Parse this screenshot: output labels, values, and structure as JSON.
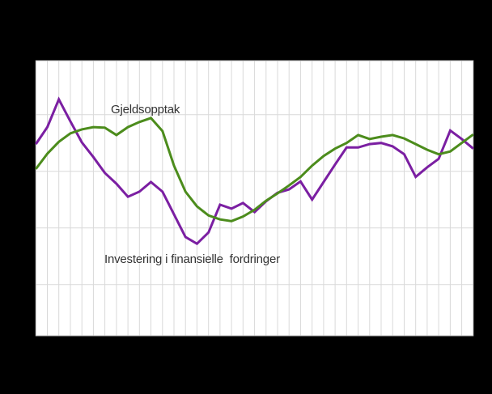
{
  "page": {
    "background_color": "#000000",
    "plot_background_color": "#ffffff"
  },
  "styles": {
    "grid_color": "#d9d9d9",
    "plot_border_color": "#c3c3c3",
    "label_color": "#333333",
    "green_series_color": "#4c8c1c",
    "purple_series_color": "#7b1fa2"
  },
  "chart_data": {
    "type": "line",
    "title": "",
    "xlabel": "",
    "ylabel": "",
    "x_axis_labels_visible": false,
    "y_axis_labels_visible": false,
    "y_unit": "gridline units (no axis labels visible; 1 unit = one horizontal gridline spacing, 0 = lowest visible horizontal gridline)",
    "grid": true,
    "x_gridline_intervals": 38,
    "y_gridlines_at": [
      0,
      1,
      2,
      3
    ],
    "ylim": [
      -0.9,
      3.95
    ],
    "legend_position": "inline-annotations",
    "series": [
      {
        "name": "Gjeldsopptak",
        "color": "#4c8c1c",
        "values": [
          2.04,
          2.31,
          2.52,
          2.67,
          2.74,
          2.78,
          2.77,
          2.64,
          2.78,
          2.87,
          2.94,
          2.71,
          2.1,
          1.64,
          1.38,
          1.22,
          1.15,
          1.12,
          1.2,
          1.32,
          1.48,
          1.61,
          1.75,
          1.9,
          2.1,
          2.27,
          2.4,
          2.5,
          2.64,
          2.57,
          2.61,
          2.64,
          2.58,
          2.48,
          2.38,
          2.3,
          2.35,
          2.5,
          2.65
        ]
      },
      {
        "name": "Investering i finansielle  fordringer",
        "color": "#7b1fa2",
        "values": [
          2.48,
          2.78,
          3.27,
          2.88,
          2.51,
          2.25,
          1.97,
          1.78,
          1.55,
          1.64,
          1.81,
          1.64,
          1.24,
          0.84,
          0.72,
          0.92,
          1.41,
          1.34,
          1.44,
          1.28,
          1.47,
          1.62,
          1.68,
          1.82,
          1.5,
          1.81,
          2.12,
          2.42,
          2.42,
          2.48,
          2.5,
          2.44,
          2.3,
          1.9,
          2.07,
          2.22,
          2.72,
          2.57,
          2.4
        ]
      }
    ],
    "annotations": [
      {
        "text": "Gjeldsopptak"
      },
      {
        "text": "Investering i finansielle  fordringer"
      }
    ]
  }
}
